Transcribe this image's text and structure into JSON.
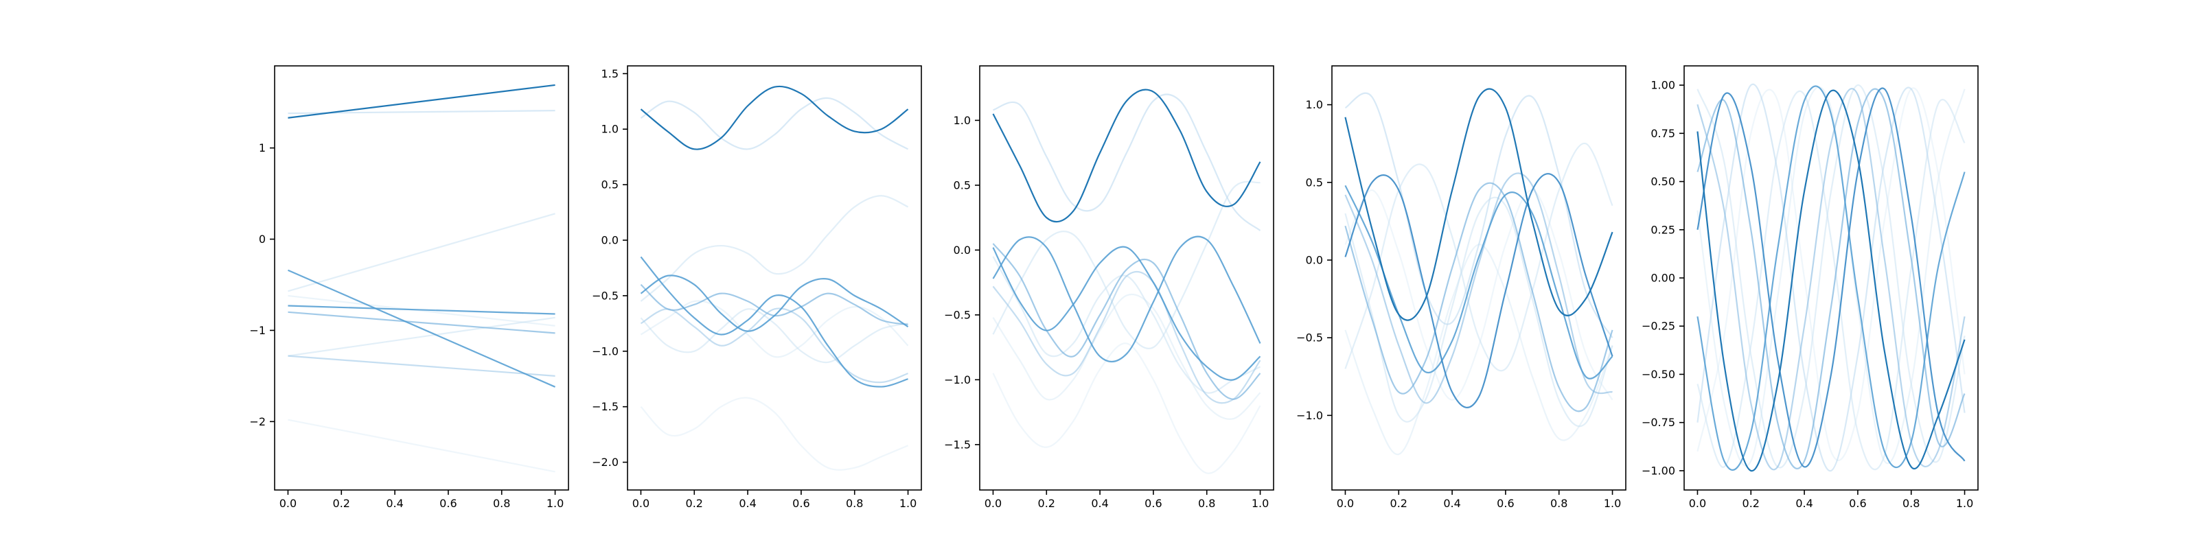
{
  "chart_data": [
    {
      "type": "line",
      "x": [
        0,
        1
      ],
      "xticks": [
        "0.0",
        "0.2",
        "0.4",
        "0.6",
        "0.8",
        "1.0"
      ],
      "xlim": [
        -0.05,
        1.05
      ],
      "ylim": [
        -2.75,
        1.9
      ],
      "yticks": [
        {
          "v": 1,
          "label": "1"
        },
        {
          "v": 0,
          "label": "0"
        },
        {
          "v": -1,
          "label": "−1"
        },
        {
          "v": -2,
          "label": "−2"
        }
      ],
      "grid": false,
      "series": [
        {
          "color": "#1f77b4",
          "alpha": 1.0,
          "values": [
            1.33,
            1.69
          ]
        },
        {
          "color": "#4f9bd1",
          "alpha": 0.85,
          "values": [
            -0.34,
            -1.62
          ]
        },
        {
          "color": "#4f9bd1",
          "alpha": 0.85,
          "values": [
            -0.73,
            -0.82
          ]
        },
        {
          "color": "#7ab4de",
          "alpha": 0.7,
          "values": [
            -0.8,
            -1.03
          ]
        },
        {
          "color": "#9fc8e8",
          "alpha": 0.6,
          "values": [
            -1.28,
            -1.5
          ]
        },
        {
          "color": "#b8d7ef",
          "alpha": 0.55,
          "values": [
            1.38,
            1.41
          ]
        },
        {
          "color": "#c6dff2",
          "alpha": 0.5,
          "values": [
            -0.57,
            0.28
          ]
        },
        {
          "color": "#c6dff2",
          "alpha": 0.5,
          "values": [
            -1.28,
            -0.86
          ]
        },
        {
          "color": "#d2e6f5",
          "alpha": 0.45,
          "values": [
            -0.62,
            -0.95
          ]
        },
        {
          "color": "#dbebf7",
          "alpha": 0.45,
          "values": [
            -1.98,
            -2.55
          ]
        }
      ]
    },
    {
      "type": "line",
      "x": [
        0,
        0.1,
        0.2,
        0.3,
        0.4,
        0.5,
        0.6,
        0.7,
        0.8,
        0.9,
        1.0
      ],
      "xticks": [
        "0.0",
        "0.2",
        "0.4",
        "0.6",
        "0.8",
        "1.0"
      ],
      "xlim": [
        -0.05,
        1.05
      ],
      "ylim": [
        -2.25,
        1.57
      ],
      "yticks": [
        {
          "v": 1.5,
          "label": "1.5"
        },
        {
          "v": 1.0,
          "label": "1.0"
        },
        {
          "v": 0.5,
          "label": "0.5"
        },
        {
          "v": 0.0,
          "label": "0.0"
        },
        {
          "v": -0.5,
          "label": "−0.5"
        },
        {
          "v": -1.0,
          "label": "−1.0"
        },
        {
          "v": -1.5,
          "label": "−1.5"
        },
        {
          "v": -2.0,
          "label": "−2.0"
        }
      ],
      "grid": false,
      "series": [
        {
          "color": "#1f77b4",
          "alpha": 1.0,
          "values": [
            1.18,
            0.98,
            0.82,
            0.92,
            1.21,
            1.38,
            1.32,
            1.12,
            0.98,
            1.0,
            1.18
          ]
        },
        {
          "color": "#4f9bd1",
          "alpha": 0.85,
          "values": [
            -0.15,
            -0.45,
            -0.7,
            -0.85,
            -0.72,
            -0.5,
            -0.6,
            -0.95,
            -1.25,
            -1.32,
            -1.25
          ]
        },
        {
          "color": "#4f9bd1",
          "alpha": 0.85,
          "values": [
            -0.48,
            -0.32,
            -0.4,
            -0.66,
            -0.82,
            -0.68,
            -0.42,
            -0.35,
            -0.5,
            -0.62,
            -0.78
          ]
        },
        {
          "color": "#7ab4de",
          "alpha": 0.7,
          "values": [
            -0.4,
            -0.62,
            -0.58,
            -0.48,
            -0.55,
            -0.68,
            -0.6,
            -0.48,
            -0.58,
            -0.72,
            -0.76
          ]
        },
        {
          "color": "#9fc8e8",
          "alpha": 0.6,
          "values": [
            -0.75,
            -0.62,
            -0.78,
            -0.95,
            -0.82,
            -0.62,
            -0.7,
            -1.0,
            -1.22,
            -1.28,
            -1.2
          ]
        },
        {
          "color": "#b8d7ef",
          "alpha": 0.55,
          "values": [
            1.1,
            1.25,
            1.15,
            0.92,
            0.82,
            0.95,
            1.18,
            1.28,
            1.15,
            0.95,
            0.82
          ]
        },
        {
          "color": "#c6dff2",
          "alpha": 0.5,
          "values": [
            -0.55,
            -0.35,
            -0.12,
            -0.05,
            -0.12,
            -0.3,
            -0.22,
            0.05,
            0.3,
            0.4,
            0.3
          ]
        },
        {
          "color": "#c6dff2",
          "alpha": 0.5,
          "values": [
            -0.7,
            -0.95,
            -1.0,
            -0.8,
            -0.62,
            -0.75,
            -1.0,
            -1.1,
            -0.95,
            -0.8,
            -0.75
          ]
        },
        {
          "color": "#d2e6f5",
          "alpha": 0.45,
          "values": [
            -0.85,
            -0.7,
            -0.55,
            -0.62,
            -0.85,
            -1.05,
            -0.95,
            -0.72,
            -0.6,
            -0.7,
            -0.95
          ]
        },
        {
          "color": "#dbebf7",
          "alpha": 0.45,
          "values": [
            -1.5,
            -1.75,
            -1.7,
            -1.5,
            -1.42,
            -1.55,
            -1.85,
            -2.05,
            -2.05,
            -1.95,
            -1.85
          ]
        }
      ]
    },
    {
      "type": "line",
      "x": [
        0,
        0.1,
        0.2,
        0.3,
        0.4,
        0.5,
        0.6,
        0.7,
        0.8,
        0.9,
        1.0
      ],
      "xticks": [
        "0.0",
        "0.2",
        "0.4",
        "0.6",
        "0.8",
        "1.0"
      ],
      "xlim": [
        -0.05,
        1.05
      ],
      "ylim": [
        -1.85,
        1.42
      ],
      "yticks": [
        {
          "v": 1.0,
          "label": "1.0"
        },
        {
          "v": 0.5,
          "label": "0.5"
        },
        {
          "v": 0.0,
          "label": "0.0"
        },
        {
          "v": -0.5,
          "label": "−0.5"
        },
        {
          "v": -1.0,
          "label": "−1.0"
        },
        {
          "v": -1.5,
          "label": "−1.5"
        }
      ],
      "grid": false,
      "series": [
        {
          "color": "#1f77b4",
          "alpha": 1.0,
          "values": [
            1.05,
            0.65,
            0.25,
            0.3,
            0.75,
            1.15,
            1.22,
            0.92,
            0.45,
            0.35,
            0.68
          ]
        },
        {
          "color": "#4f9bd1",
          "alpha": 0.85,
          "values": [
            -0.22,
            0.08,
            0.02,
            -0.42,
            -0.82,
            -0.8,
            -0.4,
            0.02,
            0.08,
            -0.28,
            -0.72
          ]
        },
        {
          "color": "#4f9bd1",
          "alpha": 0.85,
          "values": [
            0.02,
            -0.4,
            -0.62,
            -0.42,
            -0.1,
            0.02,
            -0.25,
            -0.65,
            -0.9,
            -1.0,
            -0.82
          ]
        },
        {
          "color": "#7ab4de",
          "alpha": 0.7,
          "values": [
            0.05,
            -0.2,
            -0.62,
            -0.82,
            -0.5,
            -0.15,
            -0.1,
            -0.5,
            -0.95,
            -1.15,
            -0.95
          ]
        },
        {
          "color": "#9fc8e8",
          "alpha": 0.6,
          "values": [
            -0.28,
            -0.55,
            -0.88,
            -0.95,
            -0.6,
            -0.2,
            -0.25,
            -0.72,
            -1.12,
            -1.15,
            -0.85
          ]
        },
        {
          "color": "#b8d7ef",
          "alpha": 0.55,
          "values": [
            1.08,
            1.12,
            0.72,
            0.35,
            0.35,
            0.75,
            1.15,
            1.15,
            0.75,
            0.32,
            0.15
          ]
        },
        {
          "color": "#c6dff2",
          "alpha": 0.5,
          "values": [
            -0.65,
            -0.25,
            0.08,
            0.12,
            -0.2,
            -0.62,
            -0.75,
            -0.4,
            0.05,
            0.48,
            0.52
          ]
        },
        {
          "color": "#c6dff2",
          "alpha": 0.5,
          "values": [
            -0.05,
            -0.42,
            -0.8,
            -0.72,
            -0.35,
            -0.2,
            -0.5,
            -0.9,
            -1.1,
            -1.0,
            -0.9
          ]
        },
        {
          "color": "#d2e6f5",
          "alpha": 0.45,
          "values": [
            -0.52,
            -0.85,
            -1.15,
            -1.0,
            -0.62,
            -0.35,
            -0.45,
            -0.85,
            -1.2,
            -1.3,
            -1.1
          ]
        },
        {
          "color": "#dbebf7",
          "alpha": 0.45,
          "values": [
            -0.95,
            -1.35,
            -1.52,
            -1.32,
            -0.92,
            -0.72,
            -1.0,
            -1.45,
            -1.72,
            -1.55,
            -1.2
          ]
        }
      ]
    },
    {
      "type": "line",
      "x": [
        0,
        0.1,
        0.2,
        0.3,
        0.4,
        0.5,
        0.6,
        0.7,
        0.8,
        0.9,
        1.0
      ],
      "xticks": [
        "0.0",
        "0.2",
        "0.4",
        "0.6",
        "0.8",
        "1.0"
      ],
      "xlim": [
        -0.05,
        1.05
      ],
      "ylim": [
        -1.48,
        1.25
      ],
      "yticks": [
        {
          "v": 1.0,
          "label": "1.0"
        },
        {
          "v": 0.5,
          "label": "0.5"
        },
        {
          "v": 0.0,
          "label": "0.0"
        },
        {
          "v": -0.5,
          "label": "−0.5"
        },
        {
          "v": -1.0,
          "label": "−1.0"
        }
      ],
      "grid": false,
      "series": [
        {
          "color": "#1f77b4",
          "alpha": 1.0,
          "values": [
            0.92,
            0.2,
            -0.35,
            -0.25,
            0.45,
            1.05,
            0.98,
            0.25,
            -0.32,
            -0.25,
            0.18
          ]
        },
        {
          "color": "#3a8ac6",
          "alpha": 0.9,
          "values": [
            0.02,
            0.5,
            0.45,
            -0.2,
            -0.85,
            -0.88,
            -0.2,
            0.45,
            0.5,
            -0.1,
            -0.62
          ]
        },
        {
          "color": "#4f9bd1",
          "alpha": 0.85,
          "values": [
            0.48,
            0.12,
            -0.35,
            -0.72,
            -0.52,
            0.02,
            0.42,
            0.3,
            -0.25,
            -0.75,
            -0.62
          ]
        },
        {
          "color": "#7ab4de",
          "alpha": 0.7,
          "values": [
            0.22,
            -0.38,
            -0.85,
            -0.65,
            -0.05,
            0.45,
            0.4,
            -0.2,
            -0.82,
            -0.95,
            -0.45
          ]
        },
        {
          "color": "#8fbfe3",
          "alpha": 0.65,
          "values": [
            0.42,
            0.0,
            -0.55,
            -0.92,
            -0.62,
            -0.02,
            0.5,
            0.48,
            -0.1,
            -0.78,
            -0.85
          ]
        },
        {
          "color": "#b8d7ef",
          "alpha": 0.55,
          "values": [
            0.98,
            1.05,
            0.5,
            -0.2,
            -0.4,
            0.1,
            0.8,
            1.05,
            0.55,
            -0.2,
            -0.5
          ]
        },
        {
          "color": "#c6dff2",
          "alpha": 0.5,
          "values": [
            -0.7,
            -0.2,
            0.45,
            0.6,
            0.15,
            -0.5,
            -0.7,
            -0.2,
            0.45,
            0.75,
            0.35
          ]
        },
        {
          "color": "#c6dff2",
          "alpha": 0.5,
          "values": [
            0.3,
            -0.35,
            -1.0,
            -0.9,
            -0.3,
            0.3,
            0.35,
            -0.25,
            -0.9,
            -1.05,
            -0.55
          ]
        },
        {
          "color": "#d2e6f5",
          "alpha": 0.45,
          "values": [
            -0.45,
            -0.95,
            -1.25,
            -0.85,
            -0.25,
            0.1,
            -0.2,
            -0.75,
            -1.15,
            -1.0,
            -0.55
          ]
        },
        {
          "color": "#dbebf7",
          "alpha": 0.45,
          "values": [
            0.1,
            0.45,
            0.05,
            -0.55,
            -0.9,
            -0.55,
            0.1,
            0.45,
            0.05,
            -0.6,
            -0.9
          ]
        }
      ]
    },
    {
      "type": "line",
      "x": [
        0,
        0.1,
        0.2,
        0.3,
        0.4,
        0.5,
        0.6,
        0.7,
        0.8,
        0.9,
        1.0
      ],
      "xticks": [
        "0.0",
        "0.2",
        "0.4",
        "0.6",
        "0.8",
        "1.0"
      ],
      "xlim": [
        -0.05,
        1.05
      ],
      "ylim": [
        -1.1,
        1.1
      ],
      "yticks": [
        {
          "v": 1.0,
          "label": "1.00"
        },
        {
          "v": 0.75,
          "label": "0.75"
        },
        {
          "v": 0.5,
          "label": "0.50"
        },
        {
          "v": 0.25,
          "label": "0.25"
        },
        {
          "v": 0.0,
          "label": "0.00"
        },
        {
          "v": -0.25,
          "label": "−0.25"
        },
        {
          "v": -0.5,
          "label": "−0.50"
        },
        {
          "v": -0.75,
          "label": "−0.75"
        },
        {
          "v": -1.0,
          "label": "−1.00"
        }
      ],
      "grid": false,
      "series": [
        {
          "color": "#1f77b4",
          "alpha": 1.0,
          "values": [
            0.76,
            -0.45,
            -1.0,
            -0.55,
            0.45,
            0.97,
            0.62,
            -0.38,
            -0.98,
            -0.72,
            -0.32
          ]
        },
        {
          "color": "#3a8ac6",
          "alpha": 0.9,
          "values": [
            0.25,
            0.95,
            0.58,
            -0.42,
            -0.98,
            -0.5,
            0.55,
            0.98,
            0.32,
            -0.7,
            -0.95
          ]
        },
        {
          "color": "#4f9bd1",
          "alpha": 0.85,
          "values": [
            -0.2,
            -0.95,
            -0.8,
            0.15,
            0.92,
            0.85,
            -0.1,
            -0.9,
            -0.85,
            0.05,
            0.55
          ]
        },
        {
          "color": "#7ab4de",
          "alpha": 0.7,
          "values": [
            0.55,
            0.92,
            0.25,
            -0.75,
            -0.95,
            -0.15,
            0.8,
            0.92,
            0.1,
            -0.85,
            -0.6
          ]
        },
        {
          "color": "#8fbfe3",
          "alpha": 0.65,
          "values": [
            0.9,
            0.35,
            -0.65,
            -0.98,
            -0.25,
            0.7,
            0.95,
            0.1,
            -0.85,
            -0.9,
            -0.2
          ]
        },
        {
          "color": "#b8d7ef",
          "alpha": 0.55,
          "values": [
            -0.75,
            0.3,
            1.0,
            0.55,
            -0.5,
            -1.0,
            -0.4,
            0.6,
            0.98,
            0.3,
            -0.7
          ]
        },
        {
          "color": "#c6dff2",
          "alpha": 0.5,
          "values": [
            0.98,
            0.6,
            -0.4,
            -0.98,
            -0.6,
            0.45,
            1.0,
            0.5,
            -0.55,
            -0.95,
            -0.3
          ]
        },
        {
          "color": "#c6dff2",
          "alpha": 0.5,
          "values": [
            -0.55,
            -0.98,
            -0.35,
            0.65,
            0.95,
            0.2,
            -0.8,
            -0.92,
            0.05,
            0.9,
            0.7
          ]
        },
        {
          "color": "#d2e6f5",
          "alpha": 0.45,
          "values": [
            0.35,
            -0.65,
            -0.95,
            -0.1,
            0.85,
            0.88,
            -0.15,
            -0.95,
            -0.55,
            0.5,
            0.98
          ]
        },
        {
          "color": "#dbebf7",
          "alpha": 0.45,
          "values": [
            -0.9,
            -0.3,
            0.75,
            0.92,
            0.0,
            -0.9,
            -0.7,
            0.3,
            0.98,
            0.55,
            -0.5
          ]
        }
      ]
    }
  ]
}
